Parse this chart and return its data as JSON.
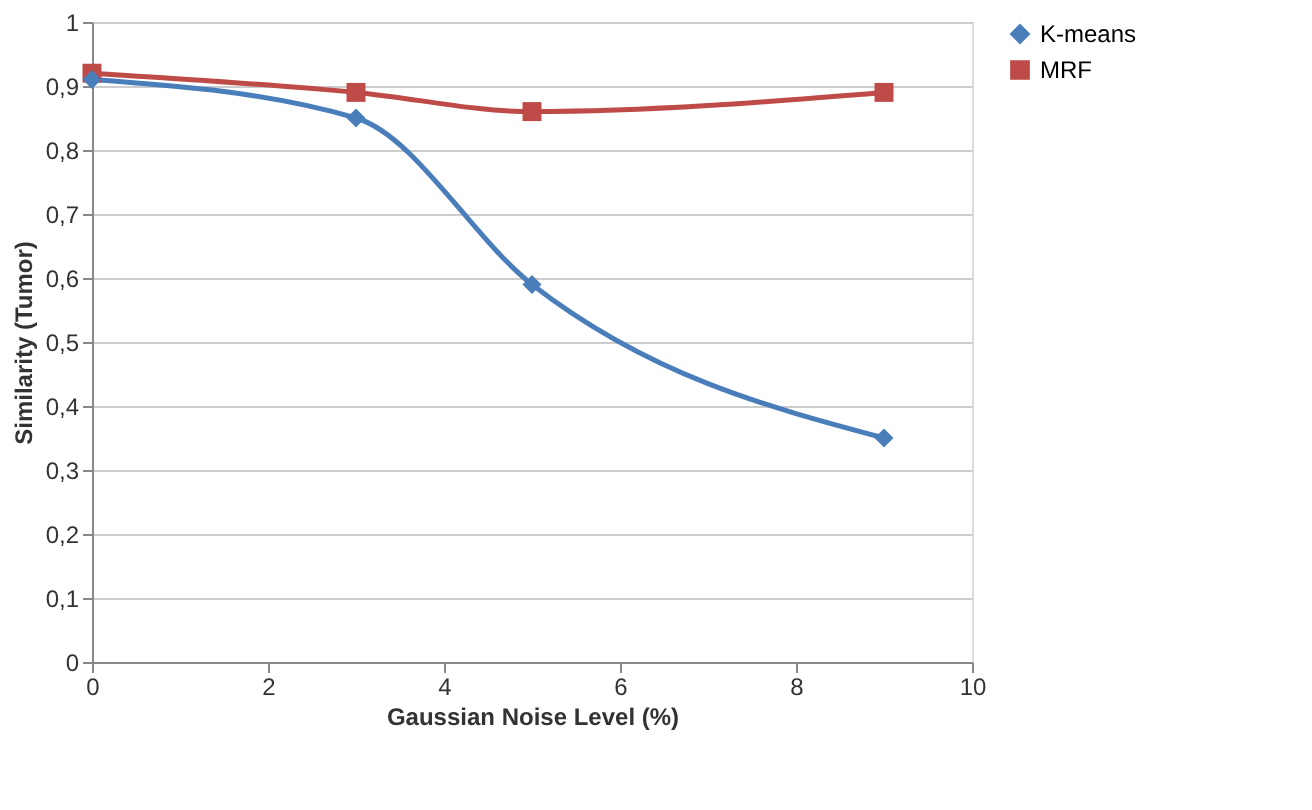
{
  "chart_data": {
    "type": "line",
    "xlabel": "Gaussian Noise Level (%)",
    "ylabel": "Similarity (Tumor)",
    "x": [
      0,
      3,
      5,
      9
    ],
    "series": [
      {
        "name": "K-means",
        "color": "#4a7ebb",
        "marker": "diamond",
        "values": [
          0.91,
          0.85,
          0.59,
          0.35
        ]
      },
      {
        "name": "MRF",
        "color": "#be4b48",
        "marker": "square",
        "values": [
          0.92,
          0.89,
          0.86,
          0.89
        ]
      }
    ],
    "xlim": [
      0,
      10
    ],
    "xticks": [
      0,
      2,
      4,
      6,
      8,
      10
    ],
    "ylim": [
      0,
      1
    ],
    "yticks": [
      0,
      {
        "value": 0.1,
        "label": "0,1"
      },
      {
        "value": 0.2,
        "label": "0,2"
      },
      {
        "value": 0.3,
        "label": "0,3"
      },
      {
        "value": 0.4,
        "label": "0,4"
      },
      {
        "value": 0.5,
        "label": "0,5"
      },
      {
        "value": 0.6,
        "label": "0,6"
      },
      {
        "value": 0.7,
        "label": "0,7"
      },
      {
        "value": 0.8,
        "label": "0,8"
      },
      {
        "value": 0.9,
        "label": "0,9"
      },
      1
    ],
    "grid": "y",
    "legend": "right",
    "line_style": "solid"
  }
}
